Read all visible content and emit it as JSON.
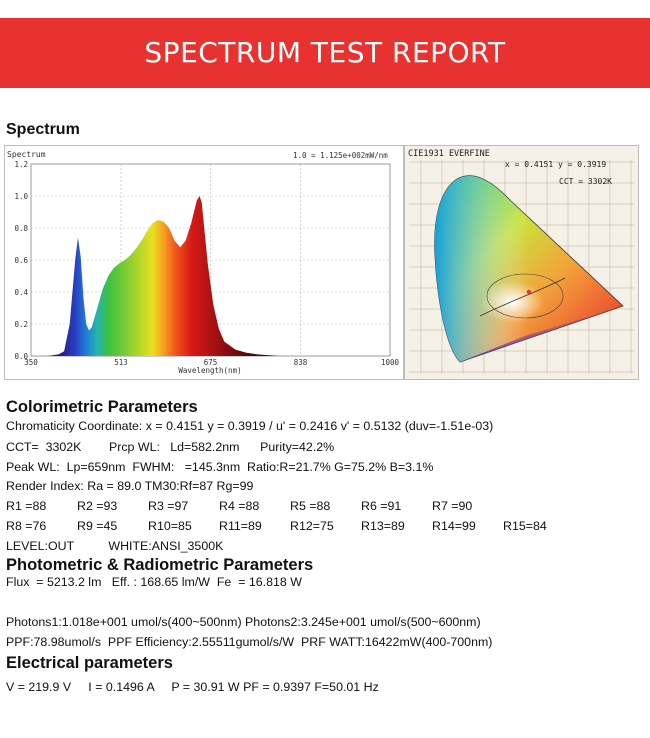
{
  "header": {
    "title": "SPECTRUM TEST REPORT"
  },
  "spectrum": {
    "section_title": "Spectrum",
    "chart_label": "Spectrum",
    "scale_note": "1.0 = 1.125e+002mW/nm"
  },
  "chart_data": {
    "type": "area",
    "title": "Spectrum",
    "xlabel": "Wavelength(nm)",
    "ylabel": "",
    "xlim": [
      350,
      1000
    ],
    "ylim": [
      0,
      1.2
    ],
    "x_ticks": [
      "350",
      "513",
      "675",
      "838",
      "1000"
    ],
    "y_ticks": [
      "0.0",
      "0.2",
      "0.4",
      "0.6",
      "0.8",
      "1.0",
      "1.2"
    ],
    "x": [
      350,
      380,
      400,
      410,
      420,
      430,
      435,
      440,
      445,
      450,
      455,
      460,
      465,
      470,
      480,
      490,
      500,
      510,
      520,
      530,
      540,
      550,
      560,
      570,
      580,
      590,
      600,
      610,
      620,
      630,
      640,
      650,
      655,
      659,
      663,
      670,
      680,
      690,
      700,
      720,
      740,
      760,
      800,
      850,
      1000
    ],
    "values": [
      0.0,
      0.0,
      0.01,
      0.03,
      0.2,
      0.6,
      0.74,
      0.62,
      0.36,
      0.2,
      0.16,
      0.18,
      0.24,
      0.3,
      0.42,
      0.5,
      0.55,
      0.58,
      0.6,
      0.63,
      0.67,
      0.72,
      0.78,
      0.83,
      0.85,
      0.84,
      0.8,
      0.72,
      0.68,
      0.72,
      0.83,
      0.97,
      1.0,
      0.96,
      0.82,
      0.58,
      0.32,
      0.17,
      0.09,
      0.04,
      0.02,
      0.01,
      0.0,
      0.0,
      0.0
    ]
  },
  "cie": {
    "header": "CIE1931   EVERFINE",
    "coord_note": "x = 0.4151 y = 0.3919",
    "cct_note": "CCT = 3302K"
  },
  "colorimetric": {
    "title": "Colorimetric Parameters",
    "chromaticity": "Chromaticity Coordinate: x = 0.4151 y = 0.3919 / u' = 0.2416 v' = 0.5132 (duv=-1.51e-03)",
    "cct": "CCT=  3302K        Prcp WL:   Ld=582.2nm      Purity=42.2%",
    "peak": "Peak WL:  Lp=659nm  FWHM:   =145.3nm  Ratio:R=21.7% G=75.2% B=3.1%",
    "render": "Render Index: Ra = 89.0 TM30:Rf=87 Rg=99",
    "r_row1": [
      "R1 =88",
      "R2 =93",
      "R3 =97",
      "R4 =88",
      "R5 =88",
      "R6 =91",
      "R7 =90"
    ],
    "r_row2": [
      "R8 =76",
      "R9 =45",
      "R10=85",
      "R11=89",
      "R12=75",
      "R13=89",
      "R14=99",
      "R15=84"
    ],
    "level": "LEVEL:OUT          WHITE:ANSI_3500K"
  },
  "photometric": {
    "title": "Photometric & Radiometric Parameters",
    "flux": "Flux  = 5213.2 lm   Eff. : 168.65 lm/W  Fe  = 16.818 W",
    "photons": "Photons1:1.018e+001 umol/s(400~500nm) Photons2:3.245e+001 umol/s(500~600nm)",
    "ppf": "PPF:78.98umol/s  PPF Efficiency:2.55511gumol/s/W  PRF WATT:16422mW(400-700nm)"
  },
  "electrical": {
    "title": "Electrical parameters",
    "values": "V = 219.9 V     I = 0.1496 A     P = 30.91 W PF = 0.9397 F=50.01 Hz"
  }
}
